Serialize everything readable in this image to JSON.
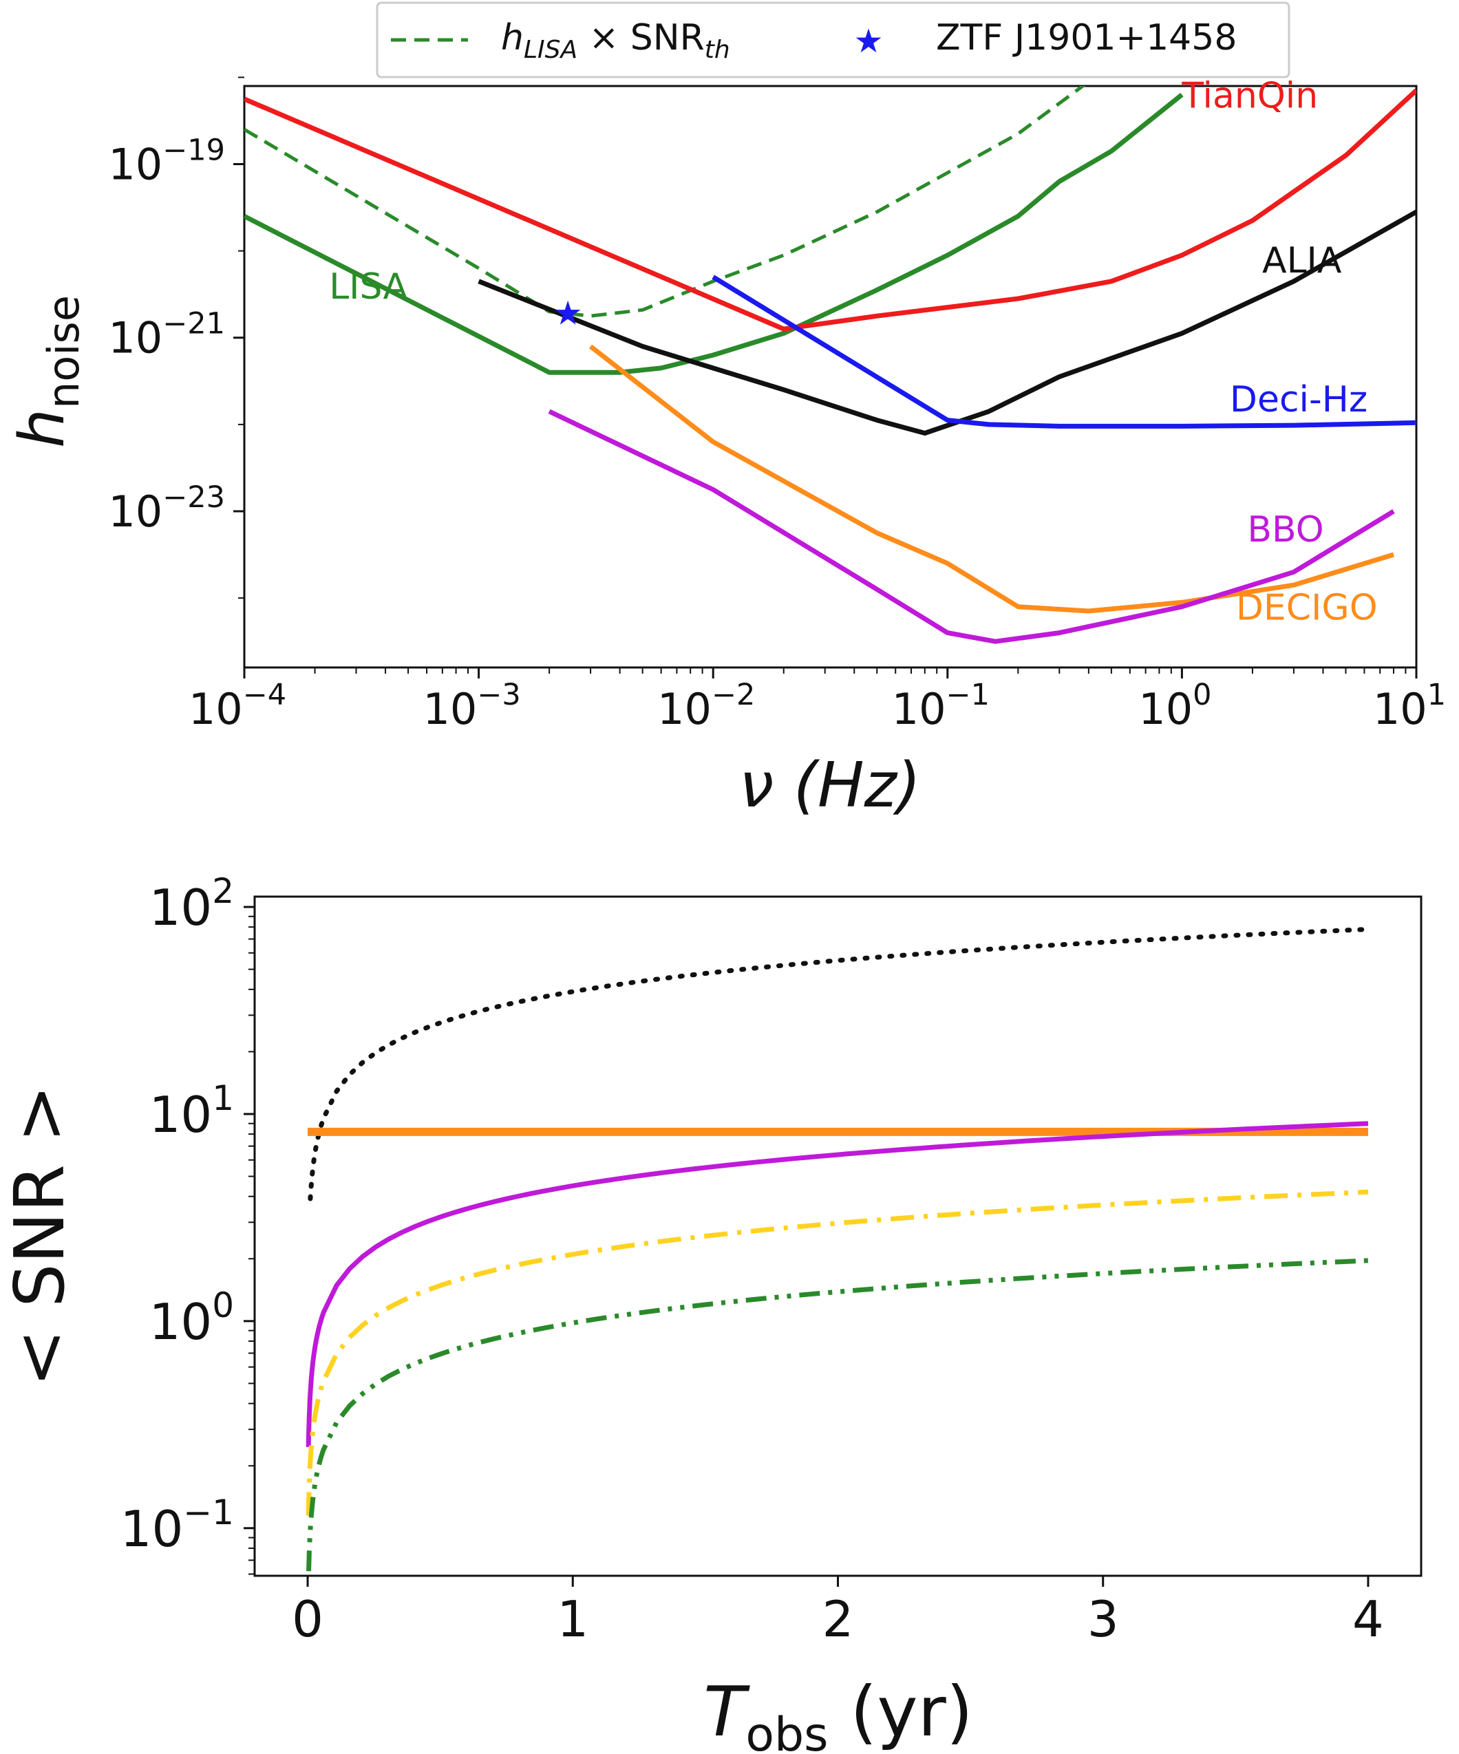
{
  "chart_data": [
    {
      "type": "line",
      "xscale": "log",
      "yscale": "log",
      "xlim": [
        0.0001,
        10
      ],
      "ylim_exp": [
        -24.8,
        -18.1
      ],
      "xlabel": "ν (Hz)",
      "ylabel": "h",
      "ylabel_sub": "noise",
      "x_ticks": [
        {
          "base": "10",
          "exp": "−4",
          "value": 0.0001
        },
        {
          "base": "10",
          "exp": "−3",
          "value": 0.001
        },
        {
          "base": "10",
          "exp": "−2",
          "value": 0.01
        },
        {
          "base": "10",
          "exp": "−1",
          "value": 0.1
        },
        {
          "base": "10",
          "exp": "0",
          "value": 1
        },
        {
          "base": "10",
          "exp": "1",
          "value": 10
        }
      ],
      "y_ticks": [
        {
          "base": "10",
          "exp": "−19",
          "value_exp": -19
        },
        {
          "base": "10",
          "exp": "−21",
          "value_exp": -21
        },
        {
          "base": "10",
          "exp": "−23",
          "value_exp": -23
        }
      ],
      "legend": {
        "placement": "top-center-outside",
        "entries": [
          {
            "label": "h",
            "sub": "LISA",
            "mid": " × SNR",
            "sub2": "th",
            "style": "dashed",
            "color": "#2a8a2a"
          },
          {
            "label": "ZTF J1901+1458",
            "style": "star",
            "color": "#1a1aee"
          }
        ]
      },
      "series": [
        {
          "name": "LISA",
          "label": "LISA",
          "color": "#2a8a2a",
          "style": "solid",
          "label_at": [
            0.00023,
            -20.55
          ],
          "points": [
            [
              0.0001,
              -19.6
            ],
            [
              0.002,
              -21.4
            ],
            [
              0.004,
              -21.4
            ],
            [
              0.006,
              -21.35
            ],
            [
              0.01,
              -21.2
            ],
            [
              0.02,
              -20.95
            ],
            [
              0.05,
              -20.45
            ],
            [
              0.1,
              -20.05
            ],
            [
              0.2,
              -19.6
            ],
            [
              0.3,
              -19.2
            ],
            [
              0.5,
              -18.85
            ],
            [
              1,
              -18.2
            ]
          ]
        },
        {
          "name": "hLISA x SNRth",
          "label": "",
          "color": "#2a8a2a",
          "style": "dashed",
          "points": [
            [
              0.0001,
              -18.6
            ],
            [
              0.001,
              -20.2
            ],
            [
              0.002,
              -20.7
            ],
            [
              0.003,
              -20.75
            ],
            [
              0.005,
              -20.68
            ],
            [
              0.01,
              -20.35
            ],
            [
              0.02,
              -20.05
            ],
            [
              0.05,
              -19.55
            ],
            [
              0.1,
              -19.1
            ],
            [
              0.2,
              -18.65
            ],
            [
              0.4,
              -18.05
            ]
          ]
        },
        {
          "name": "TianQin",
          "label": "TianQin",
          "color": "#ee1c1c",
          "style": "solid",
          "label_at": [
            1.0,
            -18.35
          ],
          "points": [
            [
              0.0001,
              -18.25
            ],
            [
              0.02,
              -20.9
            ],
            [
              0.05,
              -20.75
            ],
            [
              0.1,
              -20.65
            ],
            [
              0.2,
              -20.55
            ],
            [
              0.5,
              -20.35
            ],
            [
              1,
              -20.05
            ],
            [
              2,
              -19.65
            ],
            [
              5,
              -18.9
            ],
            [
              10,
              -18.15
            ]
          ]
        },
        {
          "name": "ALIA",
          "label": "ALIA",
          "color": "#111111",
          "style": "solid",
          "label_at": [
            2.2,
            -20.25
          ],
          "points": [
            [
              0.001,
              -20.35
            ],
            [
              0.005,
              -21.1
            ],
            [
              0.02,
              -21.6
            ],
            [
              0.05,
              -21.95
            ],
            [
              0.08,
              -22.1
            ],
            [
              0.15,
              -21.85
            ],
            [
              0.3,
              -21.45
            ],
            [
              1,
              -20.95
            ],
            [
              3,
              -20.35
            ],
            [
              10,
              -19.55
            ]
          ]
        },
        {
          "name": "Deci-Hz",
          "label": "Deci-Hz",
          "color": "#1a1aee",
          "style": "solid",
          "label_at": [
            1.6,
            -21.85
          ],
          "points": [
            [
              0.01,
              -20.3
            ],
            [
              0.1,
              -21.95
            ],
            [
              0.15,
              -22.0
            ],
            [
              0.3,
              -22.02
            ],
            [
              1,
              -22.02
            ],
            [
              3,
              -22.01
            ],
            [
              10,
              -21.98
            ]
          ]
        },
        {
          "name": "DECIGO",
          "label": "DECIGO",
          "color": "#ff8c1a",
          "style": "solid",
          "label_at": [
            1.7,
            -24.25
          ],
          "points": [
            [
              0.003,
              -21.1
            ],
            [
              0.01,
              -22.2
            ],
            [
              0.05,
              -23.25
            ],
            [
              0.1,
              -23.6
            ],
            [
              0.2,
              -24.1
            ],
            [
              0.4,
              -24.15
            ],
            [
              1,
              -24.05
            ],
            [
              3,
              -23.85
            ],
            [
              8,
              -23.5
            ]
          ]
        },
        {
          "name": "BBO",
          "label": "BBO",
          "color": "#bf1ad9",
          "style": "solid",
          "label_at": [
            1.9,
            -23.35
          ],
          "points": [
            [
              0.002,
              -21.85
            ],
            [
              0.01,
              -22.75
            ],
            [
              0.05,
              -23.9
            ],
            [
              0.1,
              -24.4
            ],
            [
              0.16,
              -24.5
            ],
            [
              0.3,
              -24.4
            ],
            [
              1,
              -24.1
            ],
            [
              3,
              -23.7
            ],
            [
              8,
              -23.0
            ]
          ]
        }
      ],
      "markers": [
        {
          "name": "ZTF J1901+1458",
          "x": 0.0024,
          "y_exp": -20.72,
          "color": "#1a1aee"
        }
      ]
    },
    {
      "type": "line",
      "xscale": "linear",
      "yscale": "log",
      "xlim": [
        -0.2,
        4.2
      ],
      "ylim_exp": [
        -1.23,
        2.05
      ],
      "xlabel": "T",
      "xlabel_sub": "obs",
      "xlabel_unit": " (yr)",
      "ylabel": "< SNR >",
      "x_ticks": [
        "0",
        "1",
        "2",
        "3",
        "4"
      ],
      "y_ticks": [
        {
          "base": "10",
          "exp": "−1",
          "value_exp": -1
        },
        {
          "base": "10",
          "exp": "0",
          "value_exp": 0
        },
        {
          "base": "10",
          "exp": "1",
          "value_exp": 1
        },
        {
          "base": "10",
          "exp": "2",
          "value_exp": 2
        }
      ],
      "series": [
        {
          "name": "ALIA",
          "color": "#111111",
          "style": "dotted",
          "scale": 39,
          "start": 0.01
        },
        {
          "name": "DECIGO",
          "color": "#ff8c1a",
          "style": "solid",
          "constant": 8.2
        },
        {
          "name": "BBO",
          "color": "#bf1ad9",
          "style": "solid",
          "scale": 4.5,
          "start": 0.003
        },
        {
          "name": "TianQin",
          "color": "#ffd21f",
          "style": "dashdot",
          "scale": 2.1,
          "start": 0.003
        },
        {
          "name": "LISA",
          "color": "#2a8a2a",
          "style": "dashdotdot",
          "scale": 0.98,
          "start": 0.004
        }
      ]
    }
  ]
}
